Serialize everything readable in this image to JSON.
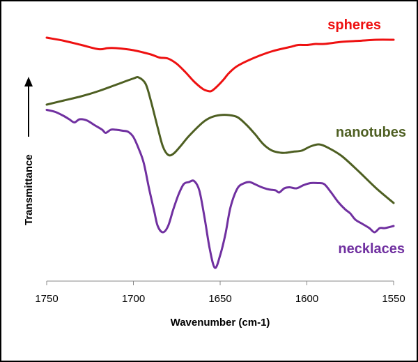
{
  "chart_data": {
    "type": "line",
    "title": "",
    "xlabel": "Wavenumber (cm-1)",
    "ylabel": "Transmittance",
    "xlim": [
      1750,
      1550
    ],
    "x_reversed": true,
    "xticks": [
      "1750",
      "1700",
      "1650",
      "1600",
      "1550"
    ],
    "y_ticks_shown": false,
    "grid": false,
    "series": [
      {
        "name": "spheres",
        "color": "#ee1111",
        "x": [
          1750,
          1740,
          1730,
          1720,
          1715,
          1710,
          1700,
          1690,
          1685,
          1680,
          1675,
          1670,
          1665,
          1660,
          1657,
          1655,
          1652,
          1648,
          1645,
          1640,
          1630,
          1620,
          1610,
          1605,
          1600,
          1595,
          1590,
          1580,
          1570,
          1560,
          1550
        ],
        "y": [
          90,
          88.5,
          86.5,
          84.5,
          85,
          85,
          84,
          82,
          80.5,
          80,
          77.5,
          73.5,
          69,
          65.5,
          64.5,
          64.5,
          66.5,
          70,
          73,
          76.5,
          80.5,
          83.5,
          85.5,
          86.5,
          86.5,
          87,
          87,
          88,
          88.5,
          89,
          89
        ]
      },
      {
        "name": "nanotubes",
        "color": "#4e5f22",
        "x": [
          1750,
          1740,
          1730,
          1720,
          1710,
          1700,
          1697,
          1693,
          1690,
          1686,
          1683,
          1680,
          1677,
          1673,
          1668,
          1660,
          1655,
          1650,
          1645,
          1640,
          1635,
          1630,
          1625,
          1620,
          1615,
          1612,
          1608,
          1603,
          1598,
          1593,
          1588,
          1580,
          1570,
          1560,
          1550
        ],
        "y": [
          58,
          60,
          62,
          64.5,
          67.5,
          70.5,
          71,
          68,
          60,
          47,
          38,
          34,
          34.5,
          38,
          43,
          49.5,
          52,
          53,
          53,
          52,
          48.5,
          44,
          39,
          36,
          35,
          35,
          35.5,
          36,
          38,
          39,
          37.5,
          33.5,
          26,
          18,
          11
        ]
      },
      {
        "name": "necklaces",
        "color": "#7030a0",
        "x": [
          1750,
          1745,
          1740,
          1737,
          1734,
          1731,
          1727,
          1722,
          1718,
          1716,
          1713,
          1710,
          1706,
          1703,
          1700,
          1697,
          1694,
          1691,
          1688,
          1686,
          1683,
          1680,
          1677,
          1674,
          1671,
          1668,
          1665,
          1662,
          1659,
          1656,
          1653,
          1650,
          1647,
          1644,
          1640,
          1636,
          1633,
          1630,
          1626,
          1622,
          1618,
          1616,
          1613,
          1610,
          1606,
          1602,
          1598,
          1594,
          1590,
          1586,
          1582,
          1578,
          1575,
          1572,
          1568,
          1564,
          1561,
          1558,
          1555,
          1550
        ],
        "y": [
          55.5,
          54.5,
          52.5,
          51,
          49.5,
          51,
          50.5,
          48,
          46,
          44.5,
          46,
          46,
          45.5,
          45,
          42.5,
          37,
          30,
          18,
          7,
          0,
          -3,
          0,
          8,
          15,
          20,
          21,
          21.5,
          17,
          4,
          -11,
          -20,
          -14,
          -4,
          9,
          18,
          20.5,
          21,
          20,
          18.5,
          17.5,
          17,
          16,
          18,
          18.5,
          18,
          19.5,
          20.5,
          20.5,
          20,
          16,
          11.5,
          8,
          6,
          3,
          1,
          -1,
          -3,
          -1,
          -1,
          0
        ]
      }
    ]
  }
}
